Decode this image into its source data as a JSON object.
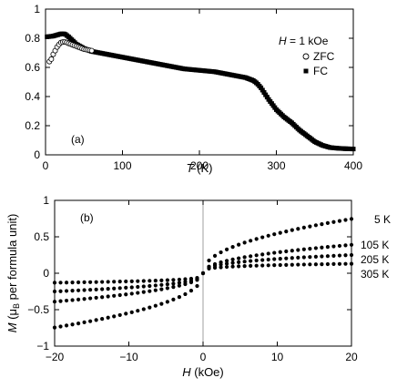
{
  "chart_data": [
    {
      "type": "scatter",
      "panel_label": "(a)",
      "xlabel_var": "T",
      "xlabel_unit": " (K)",
      "ylabel": "",
      "xlim": [
        0,
        400
      ],
      "ylim": [
        0,
        1
      ],
      "xticks": [
        0,
        100,
        200,
        300,
        400
      ],
      "yticks": [
        0,
        0.2,
        0.4,
        0.6,
        0.8,
        1
      ],
      "grid": false,
      "legend_title_var": "H",
      "legend_title_rest": " = 1 kOe",
      "legend_position": "top-right",
      "series": [
        {
          "name": "ZFC",
          "marker": "open-circle",
          "x": [
            5,
            8,
            10,
            13,
            15,
            18,
            20,
            23,
            25,
            28,
            30,
            35,
            40,
            45,
            50,
            55,
            60
          ],
          "y": [
            0.64,
            0.66,
            0.69,
            0.72,
            0.74,
            0.76,
            0.77,
            0.775,
            0.775,
            0.77,
            0.765,
            0.755,
            0.745,
            0.735,
            0.725,
            0.72,
            0.715
          ]
        },
        {
          "name": "FC",
          "marker": "filled-square",
          "x": [
            2,
            10,
            20,
            25,
            30,
            40,
            50,
            60,
            70,
            80,
            100,
            120,
            150,
            180,
            200,
            220,
            240,
            250,
            260,
            270,
            275,
            280,
            290,
            300,
            310,
            320,
            330,
            340,
            350,
            360,
            370,
            380,
            390,
            400
          ],
          "y": [
            0.81,
            0.815,
            0.83,
            0.83,
            0.81,
            0.76,
            0.73,
            0.71,
            0.7,
            0.69,
            0.67,
            0.65,
            0.62,
            0.59,
            0.58,
            0.57,
            0.55,
            0.54,
            0.53,
            0.51,
            0.49,
            0.46,
            0.38,
            0.31,
            0.26,
            0.22,
            0.17,
            0.13,
            0.09,
            0.065,
            0.05,
            0.045,
            0.042,
            0.04
          ]
        }
      ]
    },
    {
      "type": "scatter",
      "panel_label": "(b)",
      "xlabel_var": "H",
      "xlabel_unit": " (kOe)",
      "ylabel_var": "M",
      "ylabel_open": " (μ",
      "ylabel_sub": "B",
      "ylabel_close": " per formula unit)",
      "xlim": [
        -20,
        20
      ],
      "ylim": [
        -1,
        1
      ],
      "xticks": [
        -20,
        -10,
        0,
        10,
        20
      ],
      "yticks": [
        -1,
        -0.5,
        0,
        0.5,
        1
      ],
      "grid": false,
      "series": [
        {
          "name": "5 K",
          "marker": "filled-circle",
          "form": "power",
          "m_at_20": 0.745,
          "exponent": 0.45
        },
        {
          "name": "105 K",
          "marker": "filled-circle",
          "form": "power",
          "m_at_20": 0.39,
          "exponent": 0.45
        },
        {
          "name": "205 K",
          "marker": "filled-circle",
          "form": "power",
          "m_at_20": 0.25,
          "exponent": 0.35
        },
        {
          "name": "305 K",
          "marker": "filled-circle",
          "form": "power",
          "m_at_20": 0.13,
          "exponent": 0.22
        }
      ]
    }
  ]
}
